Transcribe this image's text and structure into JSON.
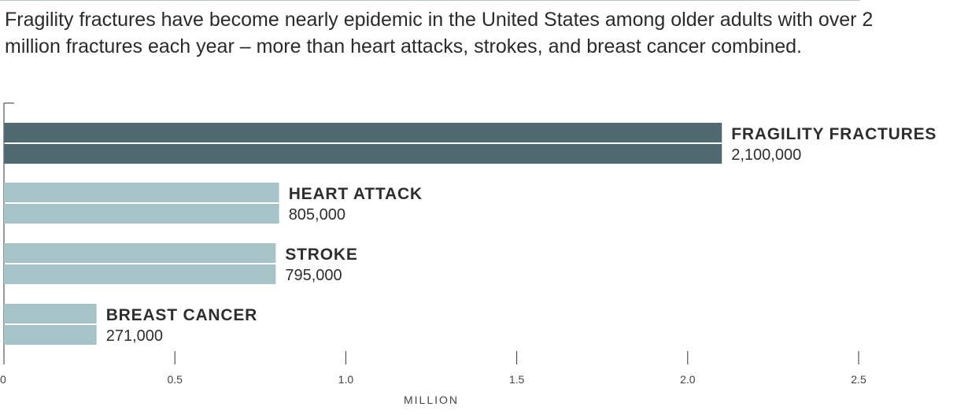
{
  "subtitle": "Fragility fractures have become nearly epidemic in the United States among older adults with over 2 million fractures each year – more than heart attacks, strokes, and breast cancer combined.",
  "chart_data": {
    "type": "bar",
    "orientation": "horizontal",
    "categories": [
      "FRAGILITY FRACTURES",
      "HEART ATTACK",
      "STROKE",
      "BREAST CANCER"
    ],
    "values": [
      2100000,
      805000,
      795000,
      271000
    ],
    "value_labels": [
      "2,100,000",
      "805,000",
      "795,000",
      "271,000"
    ],
    "highlight_index": 0,
    "xlabel": "MILLION",
    "xlim": [
      0,
      2.5
    ],
    "x_ticks": [
      0,
      0.5,
      1.0,
      1.5,
      2.0,
      2.5
    ],
    "x_tick_labels": [
      "0",
      "0.5",
      "1.0",
      "1.5",
      "2.0",
      "2.5"
    ],
    "grid": false,
    "colors": {
      "highlight": "#4f6a70",
      "default": "#a6c4c7"
    }
  }
}
